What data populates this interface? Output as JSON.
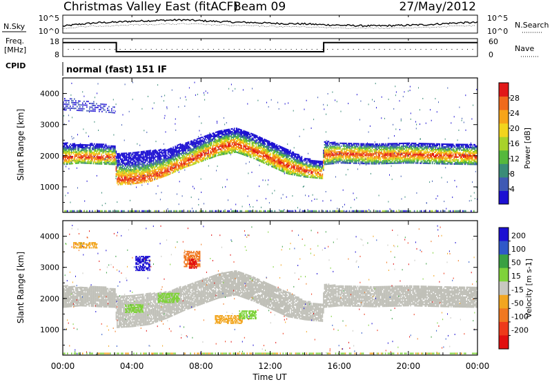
{
  "chart_data": {
    "type": "heatmap",
    "header": {
      "station_title": "Christmas Valley East (fitACF)",
      "beam_label": "Beam 09",
      "date": "27/May/2012"
    },
    "time_axis": {
      "label": "Time UT",
      "ticks": [
        "00:00",
        "04:00",
        "08:00",
        "12:00",
        "16:00",
        "20:00",
        "00:00"
      ],
      "range_hours": [
        0,
        24
      ]
    },
    "noise_panel": {
      "left_label": "N.Sky",
      "right_label": "N.Search",
      "left_ticks": [
        "10^5",
        "10^0"
      ],
      "right_ticks": [
        "10^5",
        "10^0"
      ],
      "sky_envelope": [
        {
          "t": 0,
          "v": 0.35
        },
        {
          "t": 1,
          "v": 0.55
        },
        {
          "t": 2,
          "v": 0.7
        },
        {
          "t": 3,
          "v": 0.75
        },
        {
          "t": 4,
          "v": 0.85
        },
        {
          "t": 5,
          "v": 0.9
        },
        {
          "t": 6,
          "v": 0.95
        },
        {
          "t": 7,
          "v": 0.98
        },
        {
          "t": 8,
          "v": 0.9
        },
        {
          "t": 9,
          "v": 0.82
        },
        {
          "t": 10,
          "v": 0.75
        },
        {
          "t": 11,
          "v": 0.72
        },
        {
          "t": 12,
          "v": 0.65
        },
        {
          "t": 13,
          "v": 0.6
        },
        {
          "t": 14,
          "v": 0.58
        },
        {
          "t": 15,
          "v": 0.5
        },
        {
          "t": 16,
          "v": 0.45
        },
        {
          "t": 17,
          "v": 0.4
        },
        {
          "t": 18,
          "v": 0.38
        },
        {
          "t": 19,
          "v": 0.4
        },
        {
          "t": 20,
          "v": 0.45
        },
        {
          "t": 21,
          "v": 0.5
        },
        {
          "t": 22,
          "v": 0.6
        },
        {
          "t": 23,
          "v": 0.7
        },
        {
          "t": 24,
          "v": 0.72
        }
      ]
    },
    "freq_panel": {
      "left_label_1": "Freq.",
      "left_label_2": "[MHz]",
      "right_label": "Nave",
      "left_ticks": [
        "18",
        "8"
      ],
      "right_ticks": [
        "60",
        "0"
      ],
      "freq_steps": [
        {
          "t0": 0,
          "t1": 3.1,
          "mhz": 16
        },
        {
          "t0": 3.1,
          "t1": 15.1,
          "mhz": 10.5
        },
        {
          "t0": 15.1,
          "t1": 24,
          "mhz": 16
        }
      ],
      "freq_range": [
        8,
        18
      ]
    },
    "cpid": {
      "label": "CPID",
      "value": "normal (fast) 151 IF"
    },
    "range_axis": {
      "label": "Slant Range [km]",
      "ticks": [
        1000,
        2000,
        3000,
        4000
      ],
      "range": [
        180,
        4500
      ]
    },
    "power_panel": {
      "colorbar_label": "Power [dB]",
      "colorbar_ticks": [
        4,
        8,
        12,
        16,
        20,
        24,
        28
      ],
      "colorbar_range": [
        0,
        32
      ],
      "colors": [
        "#1c10d2",
        "#3f5ab4",
        "#3a8c78",
        "#55b83c",
        "#a8d22a",
        "#f2d41c",
        "#f7a418",
        "#f06a1c",
        "#e11818"
      ]
    },
    "velocity_panel": {
      "colorbar_label": "Velocity [m s-1]",
      "colorbar_ticks": [
        200,
        100,
        50,
        15,
        -15,
        -50,
        -100,
        -200
      ],
      "colors": [
        "#1c10d2",
        "#2f58c8",
        "#3aa042",
        "#7fd23a",
        "#c8c8c0",
        "#f2a620",
        "#f07820",
        "#ee3a1a",
        "#e11010"
      ],
      "ground_scatter_color": "#c0c0b8"
    },
    "echo_band": [
      {
        "t": 0,
        "lo": 1700,
        "hi": 2400,
        "core": 1920
      },
      {
        "t": 1,
        "lo": 1750,
        "hi": 2350,
        "core": 1950
      },
      {
        "t": 2,
        "lo": 1720,
        "hi": 2380,
        "core": 1940
      },
      {
        "t": 3,
        "lo": 1700,
        "hi": 2300,
        "core": 1930
      },
      {
        "t": 3.1,
        "lo": 1050,
        "hi": 2050,
        "core": 1250
      },
      {
        "t": 4,
        "lo": 1080,
        "hi": 2100,
        "core": 1220
      },
      {
        "t": 5,
        "lo": 1150,
        "hi": 2150,
        "core": 1300
      },
      {
        "t": 6,
        "lo": 1350,
        "hi": 2200,
        "core": 1500
      },
      {
        "t": 7,
        "lo": 1600,
        "hi": 2400,
        "core": 1750
      },
      {
        "t": 8,
        "lo": 1800,
        "hi": 2600,
        "core": 2000
      },
      {
        "t": 9,
        "lo": 2000,
        "hi": 2800,
        "core": 2250
      },
      {
        "t": 10,
        "lo": 2100,
        "hi": 2900,
        "core": 2350
      },
      {
        "t": 11,
        "lo": 1900,
        "hi": 2700,
        "core": 2150
      },
      {
        "t": 12,
        "lo": 1650,
        "hi": 2450,
        "core": 1900
      },
      {
        "t": 13,
        "lo": 1400,
        "hi": 2200,
        "core": 1650
      },
      {
        "t": 14,
        "lo": 1300,
        "hi": 1900,
        "core": 1500
      },
      {
        "t": 15,
        "lo": 1250,
        "hi": 1800,
        "core": 1400
      },
      {
        "t": 15.1,
        "lo": 1700,
        "hi": 2450,
        "core": 2000
      },
      {
        "t": 16,
        "lo": 1750,
        "hi": 2400,
        "core": 2050
      },
      {
        "t": 18,
        "lo": 1720,
        "hi": 2380,
        "core": 2000
      },
      {
        "t": 20,
        "lo": 1750,
        "hi": 2400,
        "core": 2020
      },
      {
        "t": 22,
        "lo": 1720,
        "hi": 2350,
        "core": 1980
      },
      {
        "t": 24,
        "lo": 1700,
        "hi": 2350,
        "core": 1960
      }
    ],
    "far_echo": [
      {
        "t": 0,
        "lo": 3500,
        "hi": 3900
      },
      {
        "t": 2,
        "lo": 3450,
        "hi": 3750
      },
      {
        "t": 3,
        "lo": 3400,
        "hi": 3600
      }
    ],
    "velocity_patches": [
      {
        "t": 4.2,
        "r": 3150,
        "w": 0.8,
        "h": 450,
        "color": "#1c10d2"
      },
      {
        "t": 7.0,
        "r": 3300,
        "w": 0.9,
        "h": 500,
        "color": "#f07820"
      },
      {
        "t": 7.3,
        "r": 3150,
        "w": 0.4,
        "h": 300,
        "color": "#e11010"
      },
      {
        "t": 5.5,
        "r": 2050,
        "w": 1.2,
        "h": 300,
        "color": "#7fd23a"
      },
      {
        "t": 3.6,
        "r": 1700,
        "w": 1.0,
        "h": 250,
        "color": "#7fd23a"
      },
      {
        "t": 8.8,
        "r": 1350,
        "w": 1.6,
        "h": 250,
        "color": "#f2a620"
      },
      {
        "t": 10.2,
        "r": 1500,
        "w": 1.0,
        "h": 250,
        "color": "#7fd23a"
      },
      {
        "t": 0.6,
        "r": 3750,
        "w": 1.4,
        "h": 200,
        "color": "#f2a620"
      }
    ]
  }
}
